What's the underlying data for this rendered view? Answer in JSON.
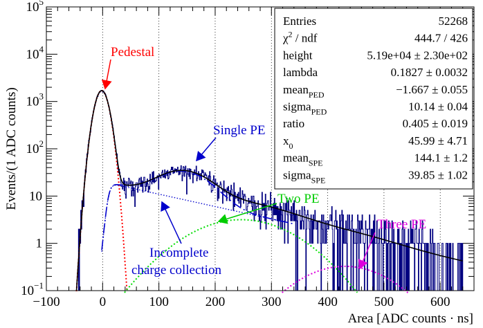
{
  "chart_data": {
    "type": "histogram",
    "xlabel": "Area [ADC counts · ns]",
    "ylabel": "Events/(1 ADC counts)",
    "xlim": [
      -100,
      660
    ],
    "ylim": [
      0.1,
      100000
    ],
    "yscale": "log",
    "x_ticks": [
      -100,
      0,
      100,
      200,
      300,
      400,
      500,
      600
    ],
    "x_tick_labels": [
      "−100",
      "0",
      "100",
      "200",
      "300",
      "400",
      "500",
      "600"
    ],
    "y_ticks": [
      0.1,
      1,
      10,
      100,
      1000,
      10000,
      100000
    ],
    "y_tick_labels": [
      {
        "base": "10",
        "exp": "−1"
      },
      {
        "base": "1",
        "exp": ""
      },
      {
        "base": "10",
        "exp": ""
      },
      {
        "base": "10",
        "exp": "2"
      },
      {
        "base": "10",
        "exp": "3"
      },
      {
        "base": "10",
        "exp": "4"
      },
      {
        "base": "10",
        "exp": "5"
      }
    ],
    "grid_x": [
      0,
      100,
      200,
      300,
      400,
      500,
      600
    ],
    "stats": {
      "rows": [
        {
          "label": "Entries",
          "sub": "",
          "sup": "",
          "value": "52268"
        },
        {
          "label": "χ",
          "sub": "",
          "sup": "2",
          "suffix": " / ndf",
          "value": "444.7 / 426"
        },
        {
          "label": "height",
          "sub": "",
          "sup": "",
          "value": "5.19e+04 ± 2.30e+02"
        },
        {
          "label": "lambda",
          "sub": "",
          "sup": "",
          "value": "0.1827 ± 0.0032"
        },
        {
          "label": "mean",
          "sub": "PED",
          "sup": "",
          "value": "−1.667 ± 0.055"
        },
        {
          "label": "sigma",
          "sub": "PED",
          "sup": "",
          "value": "10.14 ± 0.04"
        },
        {
          "label": "ratio",
          "sub": "",
          "sup": "",
          "value": "0.405 ± 0.019"
        },
        {
          "label": "x",
          "sub": "0",
          "sup": "",
          "value": "45.99 ± 4.71"
        },
        {
          "label": "mean",
          "sub": "SPE",
          "sup": "",
          "value": "144.1 ± 1.2"
        },
        {
          "label": "sigma",
          "sub": "SPE",
          "sup": "",
          "value": "39.85 ± 1.02"
        }
      ]
    },
    "fit_params": {
      "height": 51900,
      "lambda": 0.1827,
      "mean_ped": -1.667,
      "sigma_ped": 10.14,
      "ratio": 0.405,
      "x0": 45.99,
      "mean_spe": 144.1,
      "sigma_spe": 39.85
    },
    "components": [
      {
        "name": "Pedestal",
        "color": "#ff0000",
        "style": "dotted"
      },
      {
        "name": "Single PE",
        "color": "#0000cc",
        "style": "long-dash"
      },
      {
        "name": "Incomplete charge collection",
        "color": "#0000cc",
        "style": "dotted"
      },
      {
        "name": "Two PE",
        "color": "#00dd00",
        "style": "dotted"
      },
      {
        "name": "Three PE",
        "color": "#dd00dd",
        "style": "dotted"
      },
      {
        "name": "Total fit",
        "color": "#000000",
        "style": "solid"
      }
    ],
    "annotations": [
      {
        "text": "Pedestal",
        "color": "#ff0000",
        "target_x": 0,
        "target_y": 1700
      },
      {
        "text": "Single PE",
        "color": "#0000cc",
        "target_x": 185,
        "target_y": 60
      },
      {
        "text": "Incomplete",
        "color": "#0000cc",
        "target_x": 100,
        "target_y": 12
      },
      {
        "text": "charge collection",
        "color": "#0000cc",
        "target_x": 100,
        "target_y": 12
      },
      {
        "text": "Two PE",
        "color": "#00cc00",
        "target_x": 200,
        "target_y": 3
      },
      {
        "text": "Three PE",
        "color": "#dd00dd",
        "target_x": 450,
        "target_y": 0.28
      }
    ]
  }
}
